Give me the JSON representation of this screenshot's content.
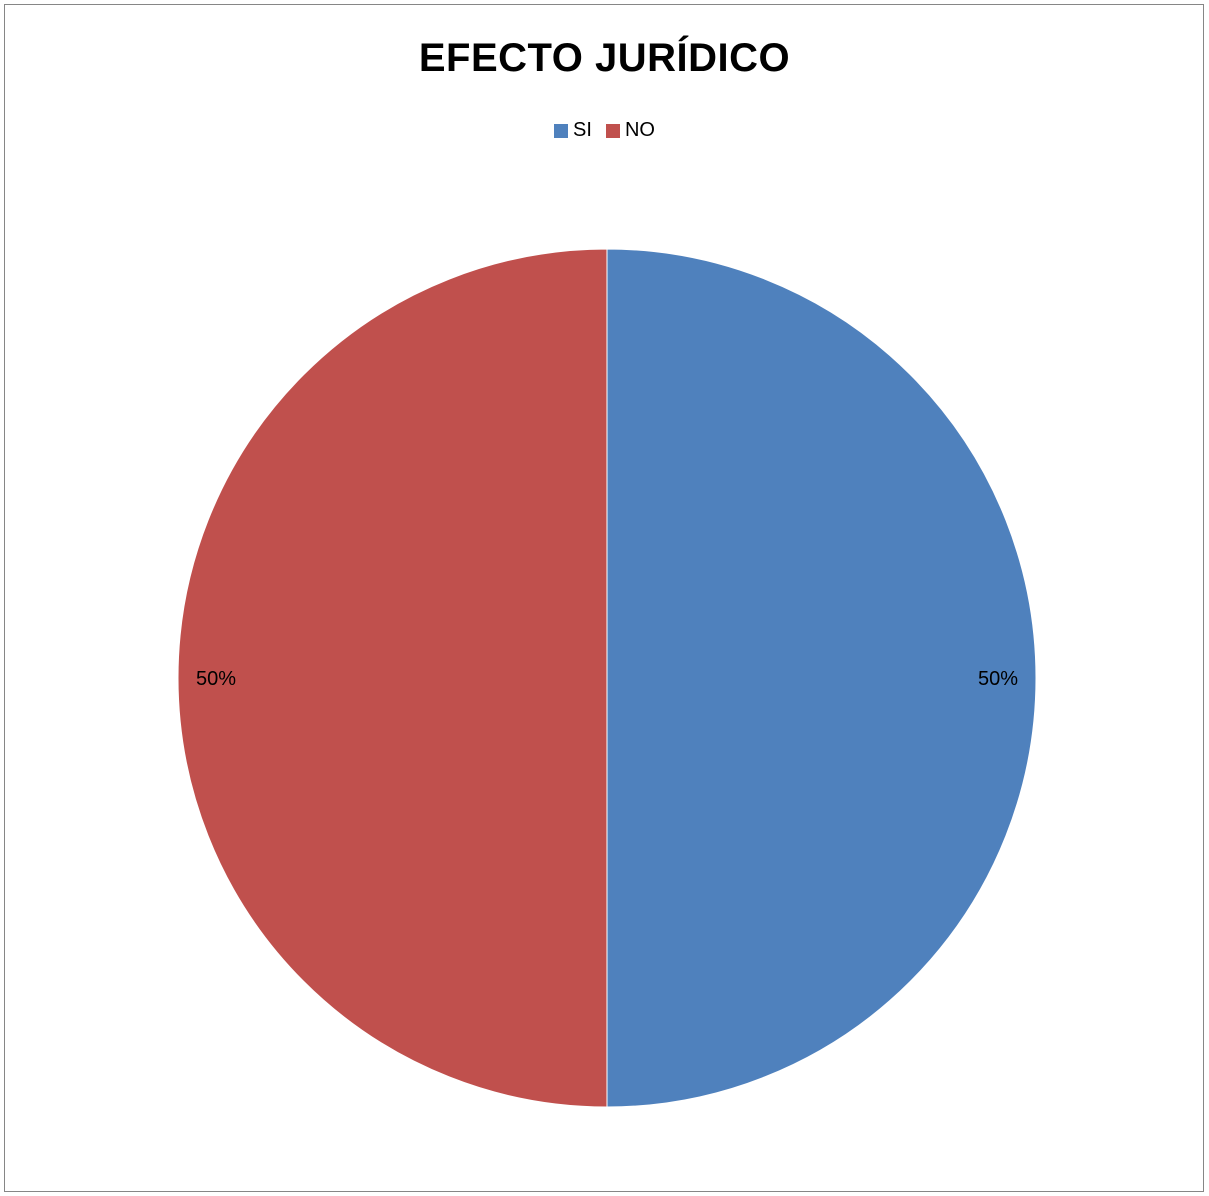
{
  "chart_data": {
    "type": "pie",
    "title": "EFECTO JURÍDICO",
    "categories": [
      "SI",
      "NO"
    ],
    "values": [
      50,
      50
    ],
    "data_labels": [
      "50%",
      "50%"
    ],
    "colors": [
      "#4F81BD",
      "#C0504D"
    ],
    "legend_position": "top"
  }
}
